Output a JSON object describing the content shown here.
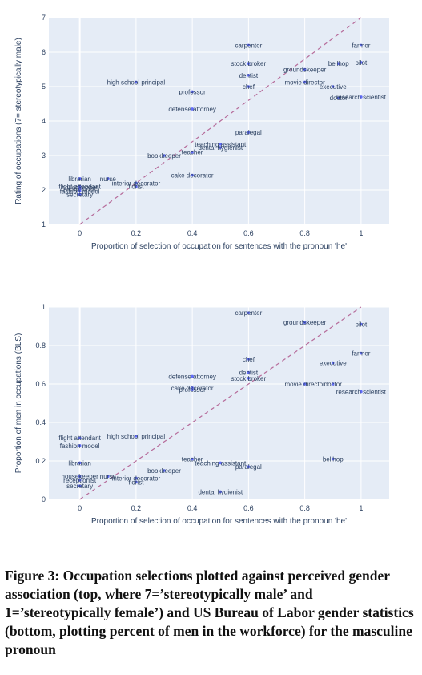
{
  "chart_data": [
    {
      "type": "scatter",
      "xlabel": "Proportion of selection of occupation for sentences with the pronoun 'he'",
      "ylabel": "Rating of occupations (7= stereotypically male)",
      "xlim": [
        -0.11,
        1.1
      ],
      "ylim": [
        1,
        7
      ],
      "xticks": [
        0,
        0.2,
        0.4,
        0.6,
        0.8,
        1
      ],
      "xtick_labels": [
        "0",
        "0.2",
        "0.4",
        "0.6",
        "0.8",
        "1"
      ],
      "yticks": [
        1,
        2,
        3,
        4,
        5,
        6,
        7
      ],
      "ytick_labels": [
        "1",
        "2",
        "3",
        "4",
        "5",
        "6",
        "7"
      ],
      "grid": true,
      "diagonal_reference_line": true,
      "points": [
        {
          "label": "carpenter",
          "x": 0.6,
          "y": 6.2
        },
        {
          "label": "farmer",
          "x": 1.0,
          "y": 6.2
        },
        {
          "label": "stock broker",
          "x": 0.6,
          "y": 5.67
        },
        {
          "label": "bellhop",
          "x": 0.92,
          "y": 5.67
        },
        {
          "label": "pilot",
          "x": 1.0,
          "y": 5.7
        },
        {
          "label": "groundskeeper",
          "x": 0.8,
          "y": 5.5
        },
        {
          "label": "dentist",
          "x": 0.6,
          "y": 5.33
        },
        {
          "label": "high school principal",
          "x": 0.2,
          "y": 5.13
        },
        {
          "label": "movie director",
          "x": 0.8,
          "y": 5.13
        },
        {
          "label": "chef",
          "x": 0.6,
          "y": 5.0
        },
        {
          "label": "executive",
          "x": 0.9,
          "y": 5.0
        },
        {
          "label": "professor",
          "x": 0.4,
          "y": 4.85
        },
        {
          "label": "doctor",
          "x": 0.92,
          "y": 4.67
        },
        {
          "label": "research scientist",
          "x": 1.0,
          "y": 4.7
        },
        {
          "label": "defense attorney",
          "x": 0.4,
          "y": 4.35
        },
        {
          "label": "paralegal",
          "x": 0.6,
          "y": 3.67
        },
        {
          "label": "teaching assistant",
          "x": 0.5,
          "y": 3.33
        },
        {
          "label": "dental hygienist",
          "x": 0.5,
          "y": 3.23
        },
        {
          "label": "teacher",
          "x": 0.4,
          "y": 3.1
        },
        {
          "label": "bookkeeper",
          "x": 0.3,
          "y": 3.0
        },
        {
          "label": "cake decorator",
          "x": 0.4,
          "y": 2.43
        },
        {
          "label": "librarian",
          "x": 0.0,
          "y": 2.33
        },
        {
          "label": "nurse",
          "x": 0.1,
          "y": 2.33
        },
        {
          "label": "interior decorator",
          "x": 0.2,
          "y": 2.2
        },
        {
          "label": "florist",
          "x": 0.2,
          "y": 2.1
        },
        {
          "label": "flight attendant",
          "x": 0.0,
          "y": 2.1
        },
        {
          "label": "housekeeper",
          "x": 0.0,
          "y": 2.08
        },
        {
          "label": "receptionist",
          "x": 0.0,
          "y": 2.03
        },
        {
          "label": "fashion model",
          "x": 0.0,
          "y": 1.97
        },
        {
          "label": "secretary",
          "x": 0.0,
          "y": 1.87
        }
      ]
    },
    {
      "type": "scatter",
      "xlabel": "Proportion of selection of occupation for sentences with the pronoun 'he'",
      "ylabel": "Proportion of men in occupations (BLS)",
      "xlim": [
        -0.11,
        1.1
      ],
      "ylim": [
        0,
        1
      ],
      "xticks": [
        0,
        0.2,
        0.4,
        0.6,
        0.8,
        1
      ],
      "xtick_labels": [
        "0",
        "0.2",
        "0.4",
        "0.6",
        "0.8",
        "1"
      ],
      "yticks": [
        0,
        0.2,
        0.4,
        0.6,
        0.8,
        1
      ],
      "ytick_labels": [
        "0",
        "0.2",
        "0.4",
        "0.6",
        "0.8",
        "1"
      ],
      "grid": true,
      "diagonal_reference_line": true,
      "points": [
        {
          "label": "carpenter",
          "x": 0.6,
          "y": 0.97
        },
        {
          "label": "groundskeeper",
          "x": 0.8,
          "y": 0.92
        },
        {
          "label": "pilot",
          "x": 1.0,
          "y": 0.91
        },
        {
          "label": "farmer",
          "x": 1.0,
          "y": 0.76
        },
        {
          "label": "executive",
          "x": 0.9,
          "y": 0.71
        },
        {
          "label": "chef",
          "x": 0.6,
          "y": 0.73
        },
        {
          "label": "dentist",
          "x": 0.6,
          "y": 0.66
        },
        {
          "label": "stock broker",
          "x": 0.6,
          "y": 0.63
        },
        {
          "label": "defense attorney",
          "x": 0.4,
          "y": 0.64
        },
        {
          "label": "movie director",
          "x": 0.8,
          "y": 0.6
        },
        {
          "label": "doctor",
          "x": 0.9,
          "y": 0.6
        },
        {
          "label": "cake decorator",
          "x": 0.4,
          "y": 0.58
        },
        {
          "label": "professor",
          "x": 0.4,
          "y": 0.57
        },
        {
          "label": "research scientist",
          "x": 1.0,
          "y": 0.56
        },
        {
          "label": "high school principal",
          "x": 0.2,
          "y": 0.33
        },
        {
          "label": "flight attendant",
          "x": 0.0,
          "y": 0.32
        },
        {
          "label": "fashion model",
          "x": 0.0,
          "y": 0.28
        },
        {
          "label": "bellhop",
          "x": 0.9,
          "y": 0.21
        },
        {
          "label": "teacher",
          "x": 0.4,
          "y": 0.21
        },
        {
          "label": "teaching assistant",
          "x": 0.5,
          "y": 0.19
        },
        {
          "label": "paralegal",
          "x": 0.6,
          "y": 0.17
        },
        {
          "label": "librarian",
          "x": 0.0,
          "y": 0.19
        },
        {
          "label": "bookkeeper",
          "x": 0.3,
          "y": 0.15
        },
        {
          "label": "housekeeper",
          "x": 0.0,
          "y": 0.12
        },
        {
          "label": "nurse",
          "x": 0.1,
          "y": 0.12
        },
        {
          "label": "interior decorator",
          "x": 0.2,
          "y": 0.11
        },
        {
          "label": "receptionist",
          "x": 0.0,
          "y": 0.1
        },
        {
          "label": "florist",
          "x": 0.2,
          "y": 0.09
        },
        {
          "label": "secretary",
          "x": 0.0,
          "y": 0.07
        },
        {
          "label": "dental hygienist",
          "x": 0.5,
          "y": 0.04
        }
      ]
    }
  ],
  "caption": "Figure 3: Occupation selections plotted against perceived gender association (top, where 7=’stereotypically male’ and 1=’stereotypically female’) and US Bureau of Labor gender statistics (bottom, plotting percent of men in the workforce) for the masculine pronoun",
  "colors": {
    "plot_background": "#e5ecf6",
    "grid": "#ffffff",
    "marker": "#636efa",
    "diagonal": "#b66b9a",
    "text": "#2a3f5f"
  }
}
